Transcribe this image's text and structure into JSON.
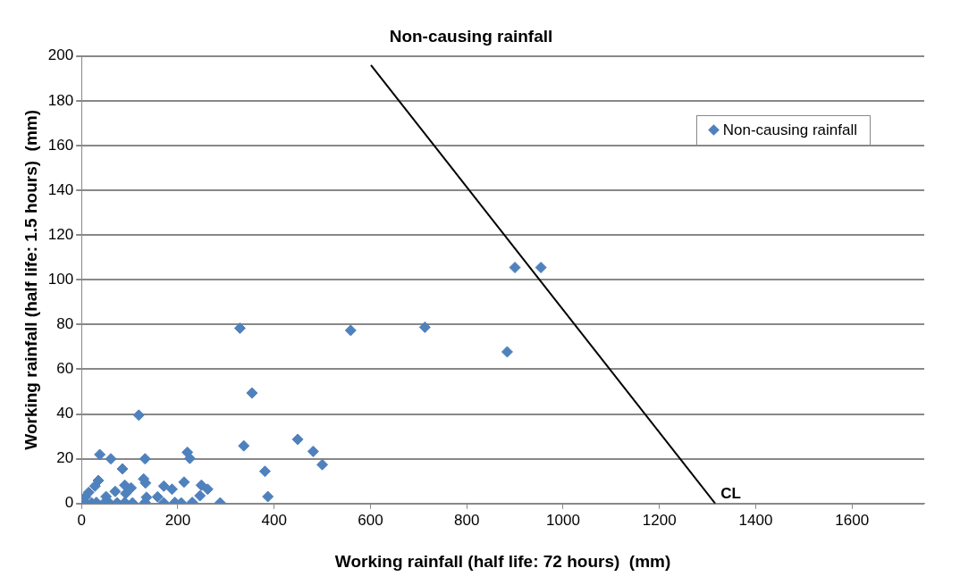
{
  "chart_data": {
    "type": "scatter",
    "title": "Non-causing rainfall",
    "xlabel": "Working rainfall (half life: 72 hours)  (mm)",
    "ylabel": "Working rainfall (half life: 1.5 hours)  (mm)",
    "series": [
      {
        "name": "Non-causing rainfall",
        "color": "#4f81bd",
        "marker": "diamond",
        "x": [
          38,
          119,
          61,
          132,
          85,
          35,
          28,
          129,
          133,
          90,
          103,
          70,
          15,
          51,
          135,
          92,
          8,
          8,
          21,
          31,
          47,
          57,
          74,
          90,
          106,
          132,
          171,
          194,
          207,
          230,
          288,
          158,
          171,
          188,
          213,
          220,
          225,
          249,
          262,
          246,
          354,
          337,
          381,
          387,
          449,
          481,
          500,
          329,
          559,
          713,
          900,
          954,
          884
        ],
        "values": [
          21.9,
          39.5,
          20,
          20,
          15.5,
          10.3,
          7.8,
          11,
          9.2,
          8.2,
          7,
          5.4,
          5,
          3.1,
          2.8,
          4.5,
          3,
          0.5,
          0.3,
          0.5,
          0.3,
          0.5,
          0.3,
          0.5,
          0.3,
          0.5,
          0.3,
          0.5,
          0.3,
          0.5,
          0.3,
          3,
          7.8,
          6.4,
          9.6,
          22.9,
          20.2,
          8.2,
          6.4,
          3.5,
          49.4,
          25.8,
          14.4,
          3.1,
          28.7,
          23.3,
          17.4,
          78.4,
          77.4,
          78.8,
          105.5,
          105.5,
          67.8
        ]
      },
      {
        "name": "CL",
        "type": "line",
        "color": "#000000",
        "marker": "none",
        "x": [
          601,
          1316
        ],
        "values": [
          196,
          0
        ]
      }
    ],
    "xlim": [
      0,
      1750
    ],
    "xticks": [
      0,
      200,
      400,
      600,
      800,
      1000,
      1200,
      1400,
      1600
    ],
    "ylim": [
      0,
      200
    ],
    "yticks": [
      0,
      20,
      40,
      60,
      80,
      100,
      120,
      140,
      160,
      180,
      200
    ],
    "grid": "y",
    "legend": "top right"
  }
}
